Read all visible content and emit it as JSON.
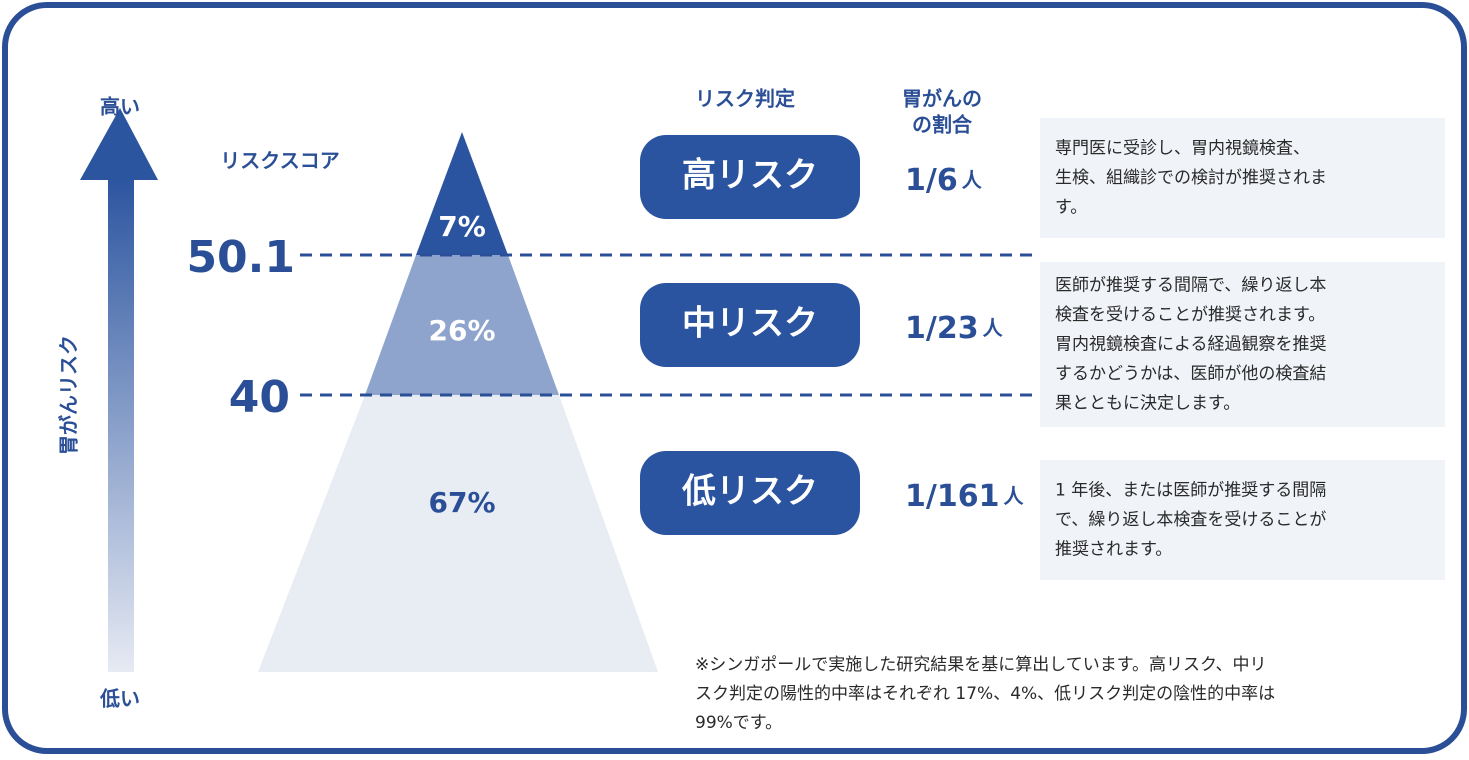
{
  "axis": {
    "high": "高い",
    "low": "低い",
    "label": "胃がんリスク"
  },
  "score_label": "リスクスコア",
  "thresholds": [
    "50.1",
    "40"
  ],
  "pyramid": [
    "7%",
    "26%",
    "67%"
  ],
  "headers": {
    "judgement": "リスク判定",
    "ratio": [
      "胃がんの",
      "の割合"
    ]
  },
  "levels": [
    {
      "name": "高リスク",
      "ratio": "1/6",
      "unit": "人",
      "description": [
        "専門医に受診し、胃内視鏡検査、",
        "生検、組織診での検討が推奨されま",
        "す。"
      ]
    },
    {
      "name": "中リスク",
      "ratio": "1/23",
      "unit": "人",
      "description": [
        "医師が推奨する間隔で、繰り返し本",
        "検査を受けることが推奨されます。",
        "胃内視鏡検査による経過観察を推奨",
        "するかどうかは、医師が他の検査結",
        "果とともに決定します。"
      ]
    },
    {
      "name": "低リスク",
      "ratio": "1/161",
      "unit": "人",
      "description": [
        "1 年後、または医師が推奨する間隔",
        "で、繰り返し本検査を受けることが",
        "推奨されます。"
      ]
    }
  ],
  "footnote": [
    "※シンガポールで実施した研究結果を基に算出しています。高リスク、中リ",
    "スク判定の陽性的中率はそれぞれ 17%、4%、低リスク判定の陰性的中率は",
    "99%です。"
  ]
}
